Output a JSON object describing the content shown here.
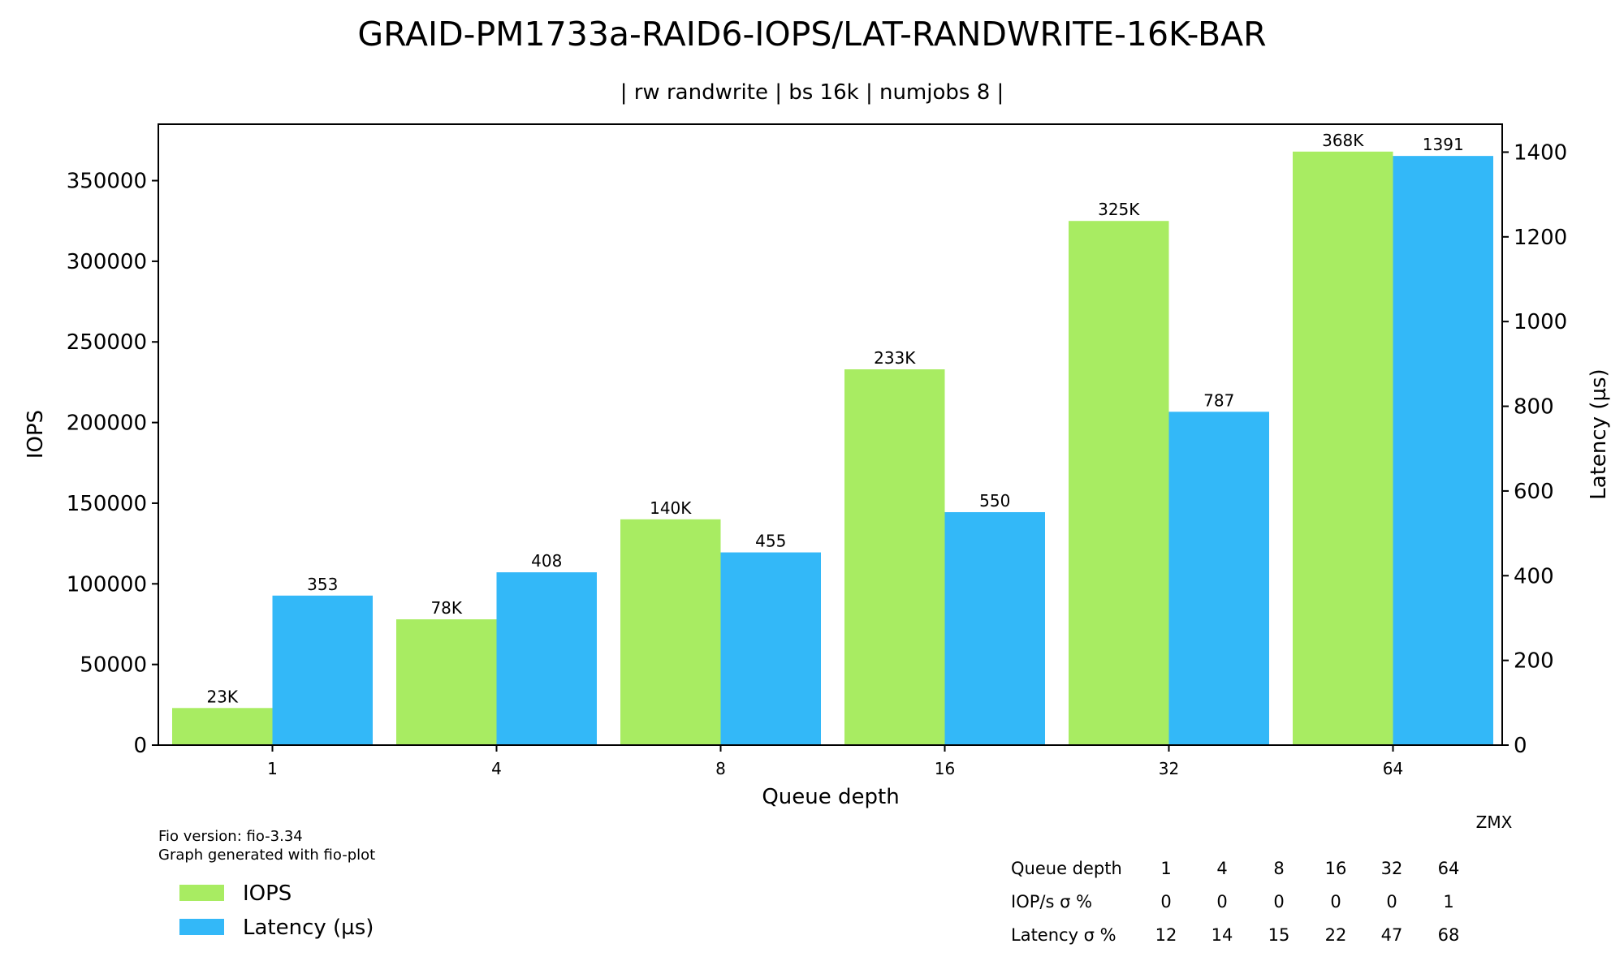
{
  "chart_data": {
    "type": "bar",
    "title": "GRAID-PM1733a-RAID6-IOPS/LAT-RANDWRITE-16K-BAR",
    "subtitle": "| rw randwrite | bs 16k | numjobs 8 |",
    "xlabel": "Queue depth",
    "ylabel_left": "IOPS",
    "ylabel_right": "Latency (µs)",
    "categories": [
      "1",
      "4",
      "8",
      "16",
      "32",
      "64"
    ],
    "ylim_left": [
      0,
      385000
    ],
    "ylim_right": [
      0,
      1466
    ],
    "yticks_left": [
      0,
      50000,
      100000,
      150000,
      200000,
      250000,
      300000,
      350000
    ],
    "yticks_right": [
      0,
      200,
      400,
      600,
      800,
      1000,
      1200,
      1400
    ],
    "grid": false,
    "legend_position": "bottom-left",
    "series": [
      {
        "name": "IOPS",
        "axis": "left",
        "color": "#a8ec62",
        "values": [
          23000,
          78000,
          140000,
          233000,
          325000,
          368000
        ],
        "labels": [
          "23K",
          "78K",
          "140K",
          "233K",
          "325K",
          "368K"
        ]
      },
      {
        "name": "Latency (µs)",
        "axis": "right",
        "color": "#33b8f8",
        "values": [
          353,
          408,
          455,
          550,
          787,
          1391
        ],
        "labels": [
          "353",
          "408",
          "455",
          "550",
          "787",
          "1391"
        ]
      }
    ]
  },
  "footer": {
    "fio_version": "Fio version: fio-3.34",
    "generated_with": "Graph generated with fio-plot",
    "author": "ZMX"
  },
  "stats_table": {
    "header_label": "Queue depth",
    "header_values": [
      "1",
      "4",
      "8",
      "16",
      "32",
      "64"
    ],
    "rows": [
      {
        "label": "IOP/s σ %",
        "values": [
          "0",
          "0",
          "0",
          "0",
          "0",
          "1"
        ]
      },
      {
        "label": "Latency σ %",
        "values": [
          "12",
          "14",
          "15",
          "22",
          "47",
          "68"
        ]
      }
    ]
  }
}
